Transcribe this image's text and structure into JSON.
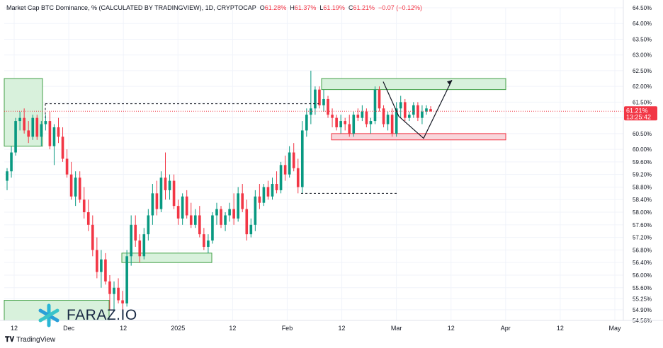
{
  "legend": {
    "title": "Market Cap BTC Dominance, % (CALCULATED BY TRADINGVIEW), 1D, CRYPTOCAP",
    "o_label": "O",
    "o": "61.28%",
    "h_label": "H",
    "h": "61.37%",
    "l_label": "L",
    "l": "61.19%",
    "c_label": "C",
    "c": "61.21%",
    "change": "−0.07 (−0.12%)"
  },
  "price_tag": {
    "value": "61.21%",
    "countdown": "13:25:42"
  },
  "branding": {
    "platform": "TradingView",
    "watermark": "FARAZ.IO"
  },
  "colors": {
    "up": "#089981",
    "down": "#f23645",
    "zone_green": "#d8f1dc",
    "zone_red": "#f8d6db"
  },
  "chart_data": {
    "type": "candlestick",
    "ylim": [
      54.56,
      64.5
    ],
    "y_ticks": [
      "64.50%",
      "64.00%",
      "63.50%",
      "63.00%",
      "62.50%",
      "62.00%",
      "61.50%",
      "61.00%",
      "60.50%",
      "60.00%",
      "59.60%",
      "59.20%",
      "58.80%",
      "58.40%",
      "58.00%",
      "57.60%",
      "57.20%",
      "56.80%",
      "56.40%",
      "56.00%",
      "55.60%",
      "55.25%",
      "54.90%",
      "54.56%"
    ],
    "x_labels": [
      "12",
      "Dec",
      "12",
      "2025",
      "12",
      "Feb",
      "12",
      "Mar",
      "12",
      "Apr",
      "12",
      "May"
    ],
    "candles": [
      [
        59.0,
        59.4,
        58.7,
        59.3
      ],
      [
        59.3,
        60.1,
        59.1,
        59.9
      ],
      [
        59.9,
        61.0,
        59.8,
        60.9
      ],
      [
        60.9,
        61.2,
        60.6,
        61.0
      ],
      [
        61.0,
        61.3,
        60.5,
        60.6
      ],
      [
        60.6,
        60.9,
        60.2,
        60.4
      ],
      [
        60.4,
        61.1,
        60.3,
        61.0
      ],
      [
        61.0,
        61.1,
        60.3,
        60.4
      ],
      [
        60.4,
        60.9,
        60.1,
        60.8
      ],
      [
        60.8,
        61.1,
        60.6,
        60.9
      ],
      [
        60.9,
        61.2,
        60.0,
        60.1
      ],
      [
        60.1,
        60.8,
        59.5,
        60.7
      ],
      [
        60.7,
        61.0,
        60.2,
        60.4
      ],
      [
        60.4,
        60.7,
        59.6,
        59.7
      ],
      [
        59.7,
        60.0,
        59.1,
        59.2
      ],
      [
        59.2,
        59.6,
        58.4,
        58.5
      ],
      [
        58.5,
        59.3,
        58.2,
        59.1
      ],
      [
        59.1,
        59.3,
        58.3,
        58.4
      ],
      [
        58.4,
        58.8,
        57.8,
        58.0
      ],
      [
        58.0,
        58.4,
        57.4,
        57.6
      ],
      [
        57.6,
        57.9,
        56.6,
        56.8
      ],
      [
        56.8,
        57.2,
        55.9,
        56.1
      ],
      [
        56.1,
        56.8,
        55.6,
        56.5
      ],
      [
        56.5,
        56.7,
        55.7,
        55.8
      ],
      [
        55.8,
        56.0,
        54.9,
        55.4
      ],
      [
        55.4,
        55.8,
        54.9,
        55.6
      ],
      [
        55.6,
        55.9,
        55.1,
        55.2
      ],
      [
        55.2,
        55.5,
        54.9,
        55.1
      ],
      [
        55.1,
        56.8,
        55.0,
        56.6
      ],
      [
        56.6,
        57.9,
        56.3,
        57.6
      ],
      [
        57.6,
        57.9,
        56.9,
        57.1
      ],
      [
        57.1,
        57.3,
        56.4,
        56.6
      ],
      [
        56.6,
        57.5,
        56.5,
        57.3
      ],
      [
        57.3,
        58.1,
        57.1,
        57.9
      ],
      [
        57.9,
        58.9,
        57.6,
        58.6
      ],
      [
        58.6,
        59.0,
        57.9,
        58.1
      ],
      [
        58.1,
        59.3,
        58.0,
        59.1
      ],
      [
        59.1,
        59.9,
        58.4,
        58.7
      ],
      [
        58.7,
        59.2,
        58.4,
        59.0
      ],
      [
        59.0,
        59.2,
        58.1,
        58.2
      ],
      [
        58.2,
        58.4,
        57.6,
        57.8
      ],
      [
        57.8,
        58.6,
        57.6,
        58.5
      ],
      [
        58.5,
        58.7,
        57.8,
        57.9
      ],
      [
        57.9,
        58.3,
        57.5,
        57.6
      ],
      [
        57.6,
        58.1,
        57.5,
        57.9
      ],
      [
        57.9,
        58.2,
        57.2,
        57.3
      ],
      [
        57.3,
        57.5,
        56.8,
        56.9
      ],
      [
        56.9,
        57.3,
        56.7,
        57.1
      ],
      [
        57.1,
        58.0,
        57.0,
        57.9
      ],
      [
        57.9,
        58.3,
        57.6,
        58.1
      ],
      [
        58.1,
        58.2,
        57.5,
        57.6
      ],
      [
        57.6,
        58.0,
        57.4,
        57.9
      ],
      [
        57.9,
        58.3,
        57.7,
        58.1
      ],
      [
        58.1,
        58.6,
        57.6,
        57.8
      ],
      [
        57.8,
        58.8,
        57.7,
        58.6
      ],
      [
        58.6,
        58.9,
        58.0,
        58.1
      ],
      [
        58.1,
        58.4,
        57.1,
        57.3
      ],
      [
        57.3,
        57.8,
        57.2,
        57.6
      ],
      [
        57.6,
        58.7,
        57.4,
        58.5
      ],
      [
        58.5,
        58.9,
        58.1,
        58.3
      ],
      [
        58.3,
        58.9,
        58.2,
        58.8
      ],
      [
        58.8,
        59.0,
        58.4,
        58.5
      ],
      [
        58.5,
        59.1,
        58.4,
        58.9
      ],
      [
        58.9,
        59.3,
        58.6,
        58.7
      ],
      [
        58.7,
        59.6,
        58.6,
        59.5
      ],
      [
        59.5,
        59.8,
        59.0,
        59.2
      ],
      [
        59.2,
        60.1,
        59.1,
        59.9
      ],
      [
        59.9,
        60.2,
        59.3,
        59.4
      ],
      [
        59.4,
        59.7,
        58.6,
        58.8
      ],
      [
        58.8,
        60.9,
        58.6,
        60.6
      ],
      [
        60.6,
        61.3,
        60.4,
        61.1
      ],
      [
        61.1,
        62.5,
        60.8,
        61.3
      ],
      [
        61.3,
        62.0,
        61.1,
        61.9
      ],
      [
        61.9,
        62.0,
        61.3,
        61.4
      ],
      [
        61.4,
        61.9,
        61.2,
        61.6
      ],
      [
        61.6,
        61.7,
        61.0,
        61.1
      ],
      [
        61.1,
        61.3,
        60.7,
        61.0
      ],
      [
        61.0,
        61.1,
        60.6,
        60.7
      ],
      [
        60.7,
        61.1,
        60.5,
        60.9
      ],
      [
        60.9,
        61.0,
        60.6,
        60.8
      ],
      [
        60.8,
        61.1,
        60.4,
        60.5
      ],
      [
        60.5,
        61.2,
        60.4,
        61.1
      ],
      [
        61.1,
        61.3,
        60.9,
        61.0
      ],
      [
        61.0,
        61.4,
        60.9,
        61.2
      ],
      [
        61.2,
        61.3,
        60.7,
        60.8
      ],
      [
        60.8,
        61.0,
        60.5,
        60.9
      ],
      [
        60.9,
        62.0,
        60.8,
        61.9
      ],
      [
        61.9,
        62.0,
        61.2,
        61.3
      ],
      [
        61.3,
        61.4,
        60.7,
        60.8
      ],
      [
        60.8,
        61.2,
        60.6,
        61.1
      ],
      [
        61.1,
        61.3,
        60.4,
        60.5
      ],
      [
        60.5,
        61.5,
        60.4,
        61.3
      ],
      [
        61.3,
        61.7,
        61.0,
        61.5
      ],
      [
        61.5,
        61.6,
        60.9,
        61.0
      ],
      [
        61.0,
        61.2,
        60.9,
        61.1
      ],
      [
        61.1,
        61.5,
        61.0,
        61.4
      ],
      [
        61.4,
        61.5,
        60.9,
        61.0
      ],
      [
        61.0,
        61.4,
        60.8,
        61.2
      ],
      [
        61.2,
        61.4,
        61.1,
        61.3
      ],
      [
        61.28,
        61.37,
        61.19,
        61.21
      ]
    ],
    "annotations": {
      "resistance_zone": [
        61.9,
        62.25
      ],
      "support_zone": [
        60.3,
        60.5
      ],
      "left_zone": [
        60.1,
        62.25
      ],
      "mid_zone": [
        56.4,
        56.7
      ],
      "bottom_zone": [
        54.56,
        55.2
      ],
      "dashed_high": 61.45,
      "dashed_low": 58.6,
      "projection": [
        62.15,
        61.05,
        60.35,
        62.2
      ]
    }
  }
}
